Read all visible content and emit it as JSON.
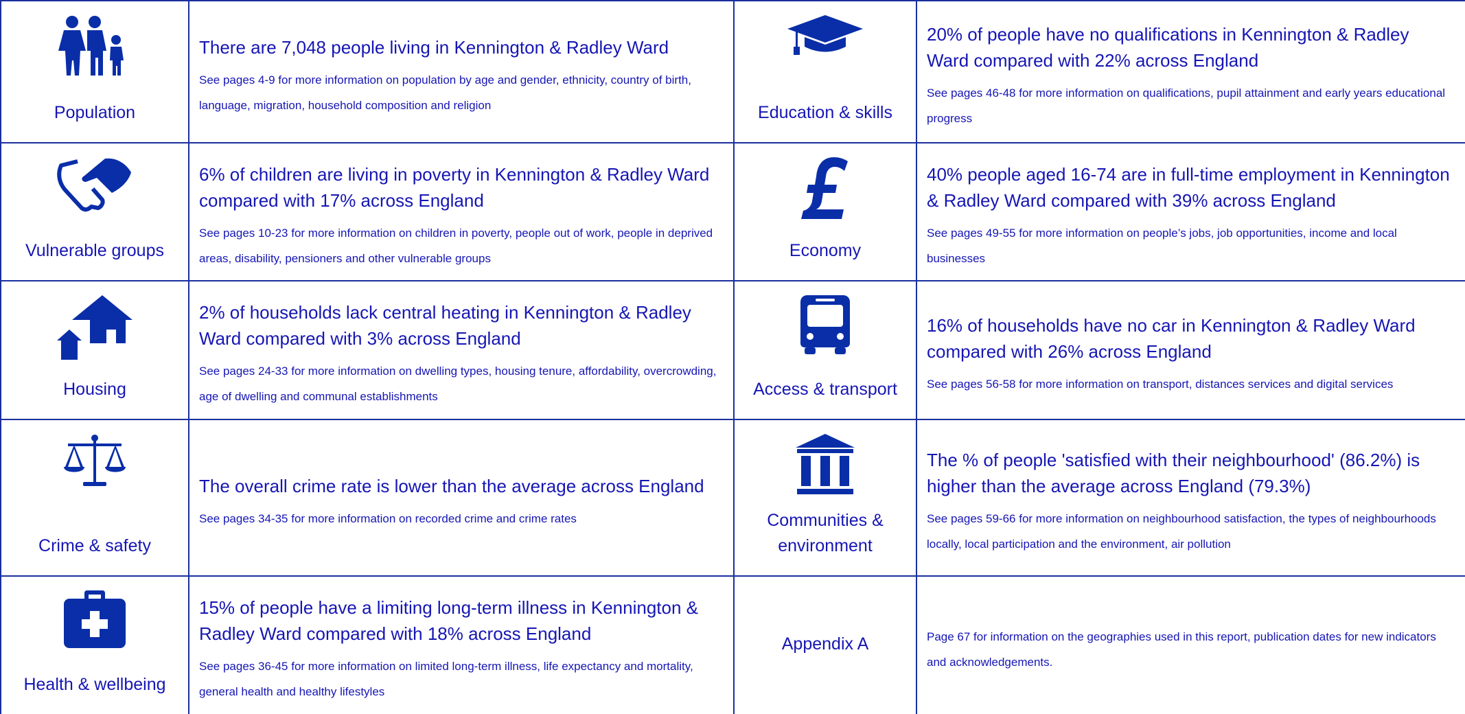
{
  "sections": [
    {
      "label": "Population",
      "headline": "There are 7,048 people living in Kennington & Radley Ward",
      "detail": "See pages 4-9 for more information on population by age and gender, ethnicity, country of birth, language, migration, household composition and religion"
    },
    {
      "label": "Education & skills",
      "headline": "20% of people have no qualifications in Kennington & Radley Ward compared with 22% across England",
      "detail": "See pages 46-48 for more information on qualifications, pupil attainment and early years educational progress"
    },
    {
      "label": "Vulnerable groups",
      "headline": "6% of children are living in poverty in Kennington & Radley Ward compared with 17% across England",
      "detail": "See pages 10-23 for more information on children in poverty, people out of work, people in deprived areas, disability, pensioners and other vulnerable groups"
    },
    {
      "label": "Economy",
      "headline": "40% people aged 16-74 are in full-time employment in Kennington & Radley Ward compared with 39% across England",
      "detail": "See pages 49-55 for more information on people’s jobs, job opportunities, income and local businesses"
    },
    {
      "label": "Housing",
      "headline": "2% of households lack central heating in Kennington & Radley Ward compared with 3% across England",
      "detail": "See pages 24-33 for more information on dwelling types, housing tenure, affordability, overcrowding, age of dwelling and communal establishments"
    },
    {
      "label": "Access & transport",
      "headline": "16% of households have no car in Kennington & Radley Ward compared with 26% across England",
      "detail": "See pages 56-58 for more information on transport, distances services and digital services"
    },
    {
      "label": "Crime & safety",
      "headline": "The overall crime rate is lower than the average across England",
      "detail": "See pages 34-35 for more information on recorded crime and crime rates"
    },
    {
      "label": "Communities & environment",
      "headline": "The % of people 'satisfied with their neighbourhood' (86.2%) is higher than the average across England (79.3%)",
      "detail": "See pages 59-66 for more information on neighbourhood satisfaction, the types of neighbourhoods locally, local participation and the environment, air pollution"
    },
    {
      "label": "Health & wellbeing",
      "headline": "15% of people have a limiting long-term illness in Kennington & Radley Ward compared with 18% across England",
      "detail": "See pages 36-45 for more information on limited long-term illness, life expectancy and mortality, general health and healthy lifestyles"
    },
    {
      "label": "Appendix A",
      "detail": "Page 67 for information on the geographies used in this report, publication dates for new indicators and acknowledgements."
    }
  ]
}
